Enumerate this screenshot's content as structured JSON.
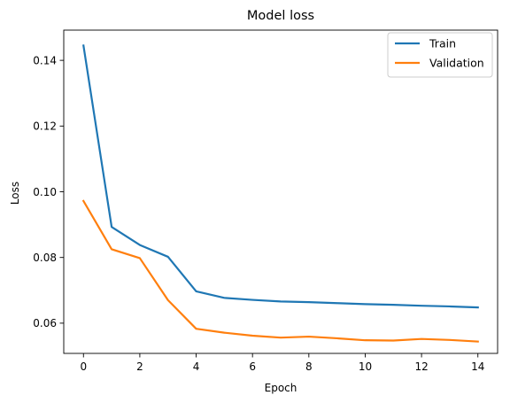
{
  "chart_data": {
    "type": "line",
    "title": "Model loss",
    "xlabel": "Epoch",
    "ylabel": "Loss",
    "x": [
      0,
      1,
      2,
      3,
      4,
      5,
      6,
      7,
      8,
      9,
      10,
      11,
      12,
      13,
      14
    ],
    "series": [
      {
        "name": "Train",
        "color": "#1f77b4",
        "values": [
          0.1445,
          0.0893,
          0.0838,
          0.0802,
          0.0697,
          0.0677,
          0.0671,
          0.0666,
          0.0664,
          0.0661,
          0.0658,
          0.0656,
          0.0653,
          0.0651,
          0.0648
        ]
      },
      {
        "name": "Validation",
        "color": "#ff7f0e",
        "values": [
          0.0972,
          0.0825,
          0.0798,
          0.067,
          0.0583,
          0.0571,
          0.0562,
          0.0556,
          0.0559,
          0.0554,
          0.0548,
          0.0547,
          0.0552,
          0.0549,
          0.0544
        ]
      }
    ],
    "xlim": [
      -0.7,
      14.7
    ],
    "ylim": [
      0.0508,
      0.1492
    ],
    "xticks": [
      0,
      2,
      4,
      6,
      8,
      10,
      12,
      14
    ],
    "yticks": [
      0.06,
      0.08,
      0.1,
      0.12,
      0.14
    ],
    "ytick_labels": [
      "0.06",
      "0.08",
      "0.10",
      "0.12",
      "0.14"
    ],
    "grid": false,
    "legend_position": "top-right"
  }
}
